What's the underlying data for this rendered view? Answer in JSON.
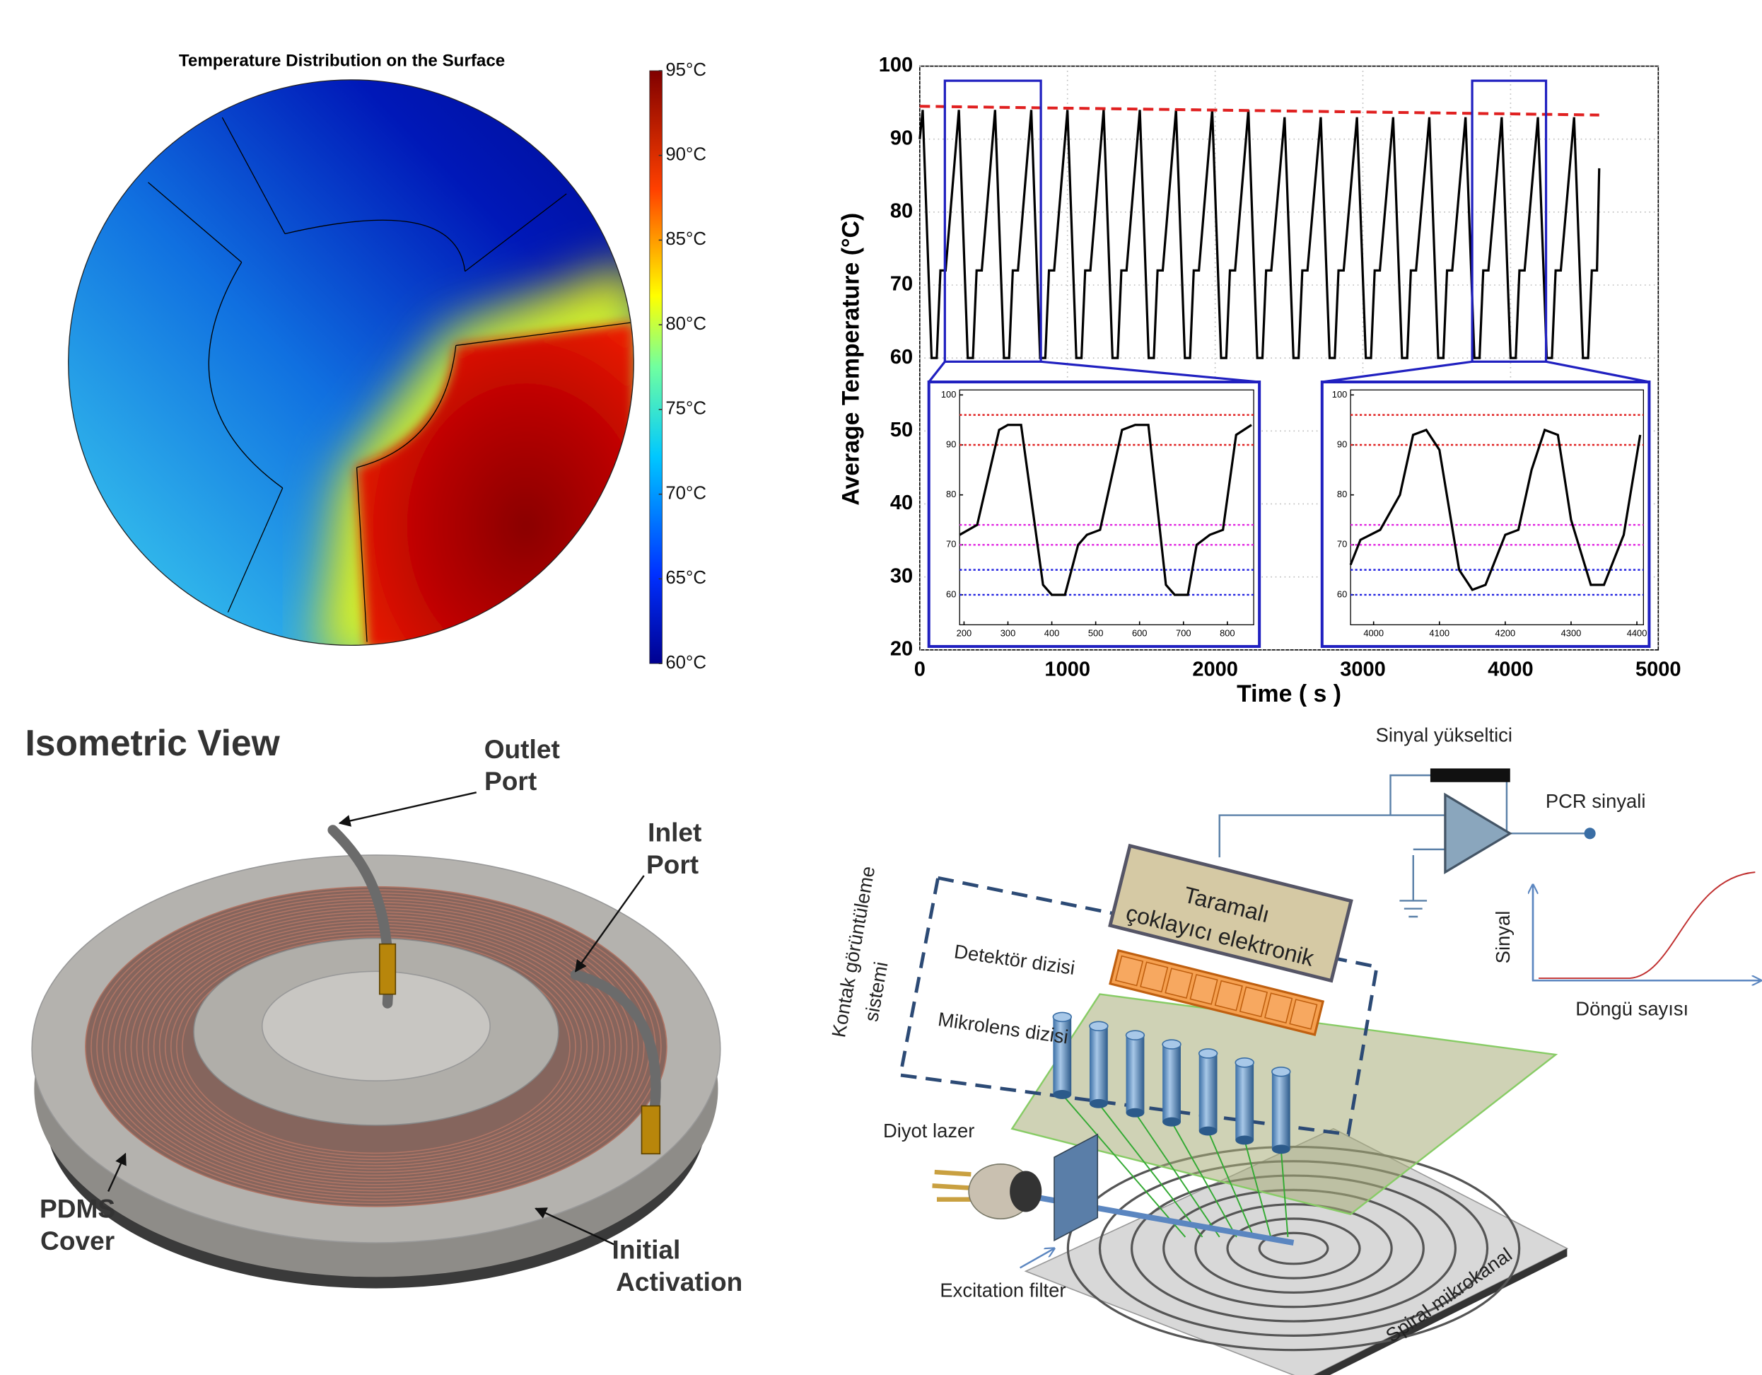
{
  "heatmap": {
    "title": "Temperature Distribution on the Surface",
    "colorbar": {
      "lim": [
        60,
        95
      ],
      "ticks": [
        {
          "value": 95,
          "label": "95°C"
        },
        {
          "value": 90,
          "label": "90°C"
        },
        {
          "value": 85,
          "label": "85°C"
        },
        {
          "value": 80,
          "label": "80°C"
        },
        {
          "value": 75,
          "label": "75°C"
        },
        {
          "value": 70,
          "label": "70°C"
        },
        {
          "value": 65,
          "label": "65°C"
        },
        {
          "value": 60,
          "label": "60°C"
        }
      ]
    }
  },
  "chart_data": {
    "type": "line",
    "ylabel": "Average Temperature (°C)",
    "xlabel": "Time ( s )",
    "xlim": [
      0,
      5000
    ],
    "ylim": [
      20,
      100
    ],
    "xticks": [
      0,
      1000,
      2000,
      3000,
      4000,
      5000
    ],
    "yticks": [
      20,
      30,
      40,
      50,
      60,
      70,
      80,
      90,
      100
    ],
    "grid": true,
    "series": [
      {
        "color": "#000000",
        "x": [
          0,
          20,
          80,
          115,
          140,
          175,
          265,
          325,
          360,
          385,
          420,
          510,
          570,
          605,
          630,
          665,
          755,
          815,
          850,
          875,
          910,
          1000,
          1060,
          1095,
          1120,
          1155,
          1245,
          1305,
          1340,
          1365,
          1400,
          1490,
          1550,
          1585,
          1610,
          1645,
          1735,
          1795,
          1830,
          1855,
          1890,
          1980,
          2040,
          2075,
          2100,
          2135,
          2225,
          2285,
          2320,
          2345,
          2380,
          2470,
          2530,
          2565,
          2590,
          2625,
          2715,
          2775,
          2810,
          2835,
          2870,
          2960,
          3020,
          3055,
          3080,
          3115,
          3205,
          3265,
          3300,
          3325,
          3360,
          3450,
          3510,
          3545,
          3570,
          3605,
          3695,
          3755,
          3790,
          3815,
          3850,
          3940,
          4000,
          4035,
          4060,
          4095,
          4185,
          4245,
          4280,
          4305,
          4340,
          4430,
          4490,
          4525,
          4550,
          4585,
          4600
        ],
        "values": [
          90,
          94,
          60,
          60,
          72,
          72,
          94,
          60,
          60,
          72,
          72,
          94,
          60,
          60,
          72,
          72,
          94,
          60,
          60,
          72,
          72,
          94,
          60,
          60,
          72,
          72,
          94,
          60,
          60,
          72,
          72,
          94,
          60,
          60,
          72,
          72,
          94,
          60,
          60,
          72,
          72,
          94,
          60,
          60,
          72,
          72,
          94,
          60,
          60,
          72,
          72,
          93,
          60,
          60,
          72,
          72,
          93,
          60,
          60,
          72,
          72,
          93,
          60,
          60,
          72,
          72,
          93,
          60,
          60,
          72,
          72,
          93,
          60,
          60,
          72,
          72,
          93,
          60,
          60,
          72,
          72,
          93,
          60,
          60,
          72,
          72,
          93,
          60,
          60,
          72,
          72,
          93,
          60,
          60,
          72,
          72,
          86
        ]
      },
      {
        "color": "#e02020",
        "dash": true,
        "x": [
          0,
          4600
        ],
        "values": [
          94.5,
          93.3
        ]
      }
    ],
    "zoom_boxes": [
      {
        "color": "#2020c0",
        "xlim": [
          170,
          820
        ],
        "ylim": [
          59.5,
          98
        ]
      },
      {
        "color": "#2020c0",
        "xlim": [
          3740,
          4240
        ],
        "ylim": [
          59.5,
          98
        ]
      }
    ],
    "insets": [
      {
        "xlim": [
          190,
          860
        ],
        "ylim": [
          54,
          101
        ],
        "xticks": [
          200,
          300,
          400,
          500,
          600,
          700,
          800
        ],
        "yticks": [
          60,
          70,
          80,
          90,
          100
        ],
        "series": [
          {
            "color": "#000000",
            "x": [
              190,
              230,
              280,
              300,
              330,
              380,
              400,
              430,
              460,
              480,
              510,
              560,
              590,
              620,
              660,
              680,
              710,
              730,
              760,
              790,
              820,
              855
            ],
            "values": [
              72,
              74,
              93,
              94,
              94,
              62,
              60,
              60,
              70,
              72,
              73,
              93,
              94,
              94,
              62,
              60,
              60,
              70,
              72,
              73,
              92,
              94
            ]
          }
        ],
        "hlines": [
          {
            "value": 96,
            "color": "#e02020"
          },
          {
            "value": 90,
            "color": "#e02020"
          },
          {
            "value": 74,
            "color": "#e020e0"
          },
          {
            "value": 70,
            "color": "#e020e0"
          },
          {
            "value": 65,
            "color": "#2020e0"
          },
          {
            "value": 60,
            "color": "#2020e0"
          }
        ]
      },
      {
        "xlim": [
          3965,
          4410
        ],
        "ylim": [
          54,
          101
        ],
        "xticks": [
          4000,
          4100,
          4200,
          4300,
          4400
        ],
        "yticks": [
          60,
          70,
          80,
          90,
          100
        ],
        "series": [
          {
            "color": "#000000",
            "x": [
              3965,
              3980,
              4010,
              4040,
              4060,
              4080,
              4100,
              4130,
              4150,
              4170,
              4200,
              4220,
              4240,
              4260,
              4280,
              4300,
              4330,
              4350,
              4380,
              4405
            ],
            "values": [
              66,
              71,
              73,
              80,
              92,
              93,
              89,
              65,
              61,
              62,
              72,
              73,
              85,
              93,
              92,
              75,
              62,
              62,
              72,
              92
            ]
          }
        ],
        "hlines": [
          {
            "value": 96,
            "color": "#e02020"
          },
          {
            "value": 90,
            "color": "#e02020"
          },
          {
            "value": 74,
            "color": "#e020e0"
          },
          {
            "value": 70,
            "color": "#e020e0"
          },
          {
            "value": 65,
            "color": "#2020e0"
          },
          {
            "value": 60,
            "color": "#2020e0"
          }
        ]
      }
    ]
  },
  "isometric": {
    "title": "Isometric View",
    "labels": [
      [
        "Outlet",
        "Port"
      ],
      [
        "Inlet",
        "Port"
      ],
      [
        "PDMS",
        "Cover"
      ],
      [
        "Initial",
        "Activation"
      ]
    ]
  },
  "schematic": {
    "amplifier": "Sinyal yükseltici",
    "output": "PCR sinyali",
    "electronics": [
      "Taramalı",
      "çoklayıcı elektronik"
    ],
    "detector": "Detektör dizisi",
    "microlens": "Mikrolens dizisi",
    "imaging": [
      "Kontak görüntüleme",
      "sistemi"
    ],
    "laser": "Diyot lazer",
    "filter": "Excitation filter",
    "channel": "Spiral mikrokanal",
    "plot_ylabel": "Sinyal",
    "plot_xlabel": "Döngü sayısı"
  }
}
